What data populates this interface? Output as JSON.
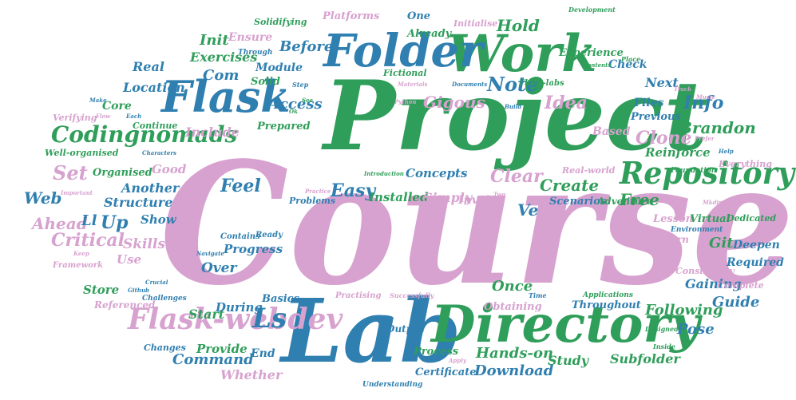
{
  "colors": {
    "pink": "#d7a2cf",
    "green": "#2f9e5a",
    "blue": "#2f7fb0",
    "lgreen": "#4ab07a",
    "lblue": "#4a93c4"
  },
  "words": {
    "course": "Course",
    "project": "Project",
    "lab": "Lab",
    "directory": "Directory",
    "work": "Work",
    "folder": "Folder",
    "flask": "Flask",
    "repository": "Repository",
    "flask_webdev": "Flask-webdev",
    "codingnomads": "Codingnomads",
    "ls": "Ls",
    "note": "Note",
    "idea": "Idea",
    "info": "Info",
    "clone": "Clone",
    "brandon": "Brandon",
    "gigous": "Gigous",
    "access": "Access",
    "create": "Create",
    "clear": "Clear",
    "easy": "Easy",
    "installed": "Installed",
    "simply": "Simply",
    "ve": "Ve",
    "concepts": "Concepts",
    "set": "Set",
    "up": "Up",
    "web": "Web",
    "ahead": "Ahead",
    "ll": "Ll",
    "critical": "Critical",
    "skills": "Skills",
    "show": "Show",
    "another": "Another",
    "structure": "Structure",
    "feel": "Feel",
    "organised": "Organised",
    "good": "Good",
    "include": "Include",
    "core": "Core",
    "com": "Com",
    "init": "Init",
    "ensure": "Ensure",
    "before": "Before",
    "exercises": "Exercises",
    "module": "Module",
    "solid": "Solid",
    "real": "Real",
    "location": "Location",
    "hold": "Hold",
    "already": "Already",
    "experience": "Experience",
    "check": "Check",
    "next": "Next",
    "files": "Files",
    "previous": "Previous",
    "based": "Based",
    "reinforce": "Reinforce",
    "free": "Free",
    "git": "Git",
    "deepen": "Deepen",
    "required": "Required",
    "gaining": "Gaining",
    "once": "Once",
    "over": "Over",
    "progress": "Progress",
    "use": "Use",
    "store": "Store",
    "basics": "Basics",
    "start": "Start",
    "during": "During",
    "provide": "Provide",
    "command": "Command",
    "end": "End",
    "whether": "Whether",
    "hands_on": "Hands-on",
    "download": "Download",
    "study": "Study",
    "certificate": "Certificate",
    "process": "Process",
    "output": "Output",
    "subfolder": "Subfolder",
    "pose": "Pose",
    "guide": "Guide",
    "following": "Following",
    "throughout": "Throughout",
    "obtaining": "Obtaining",
    "scenarios": "Scenarios",
    "adventure": "Adventure",
    "involve": "Involve",
    "problems": "Problems",
    "lesson": "Lesson",
    "virtual": "Virtual",
    "learn": "Learn",
    "dedicated": "Dedicated",
    "environment": "Environment",
    "consistency": "Consistency",
    "complete": "Complete",
    "foundation": "Foundation",
    "everything": "Everything",
    "real_world": "Real-world",
    "prepared": "Prepared",
    "continue": "Continue",
    "verifying": "Verifying",
    "well_organised": "Well-organised",
    "platforms": "Platforms",
    "one": "One",
    "solidifying": "Solidifying",
    "through": "Through",
    "initialise": "Initialise",
    "fictional": "Fictional",
    "contains": "Contains",
    "ready": "Ready",
    "referenced": "Referenced",
    "challenges": "Challenges",
    "changes": "Changes",
    "framework": "Framework",
    "practising": "Practising",
    "successfully": "Successfully",
    "applications": "Applications",
    "understanding": "Understanding",
    "inside": "Inside",
    "designed": "Designed",
    "place": "Place",
    "time": "Time",
    "development": "Development",
    "contents": "Contents",
    "materials": "Materials",
    "documents": "Documents",
    "flask_labs": "Flask-labs",
    "python": "Python",
    "build": "Build",
    "step": "Step",
    "characters": "Characters",
    "introduction": "Introduction",
    "two": "Two",
    "help": "Help",
    "prefer": "Prefer",
    "make": "Make",
    "each": "Each",
    "flow": "Flow",
    "important": "Important",
    "keep": "Keep",
    "github": "Github",
    "crucial": "Crucial",
    "navigate": "Navigate",
    "apply": "Apply",
    "mtdir": "Mkdir",
    "music": "Music",
    "track": "Track",
    "see": "See",
    "ok": "Ok",
    "practice": "Practice",
    "start2": "Start"
  }
}
